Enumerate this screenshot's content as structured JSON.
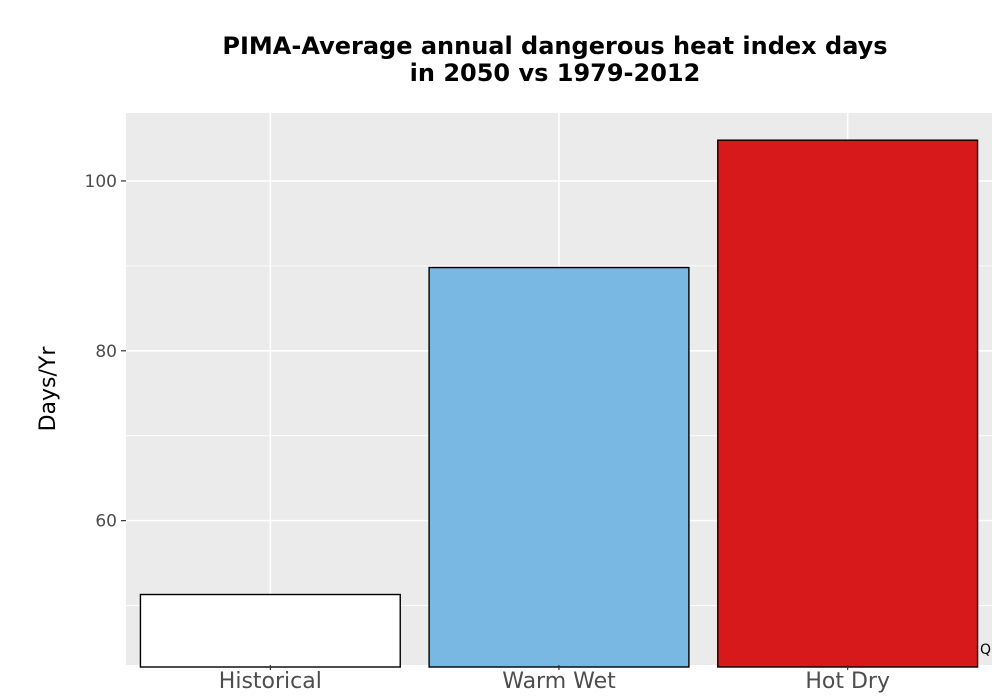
{
  "chart_data": {
    "type": "bar",
    "title_lines": [
      "PIMA-Average annual dangerous heat index days",
      "in 2050 vs 1979-2012"
    ],
    "xlabel": "",
    "ylabel": "Days/Yr",
    "categories": [
      "Historical",
      "Warm Wet",
      "Hot Dry"
    ],
    "values": [
      51.3,
      89.8,
      104.8
    ],
    "colors": [
      "#ffffff",
      "#79b8e2",
      "#d7191c"
    ],
    "bar_outline": "#000000",
    "ylim": [
      43,
      108
    ],
    "yticks": [
      60,
      80,
      100
    ],
    "grid": true,
    "panel_background": "#ebebeb",
    "grid_color": "#ffffff",
    "corner_note": "Q"
  }
}
